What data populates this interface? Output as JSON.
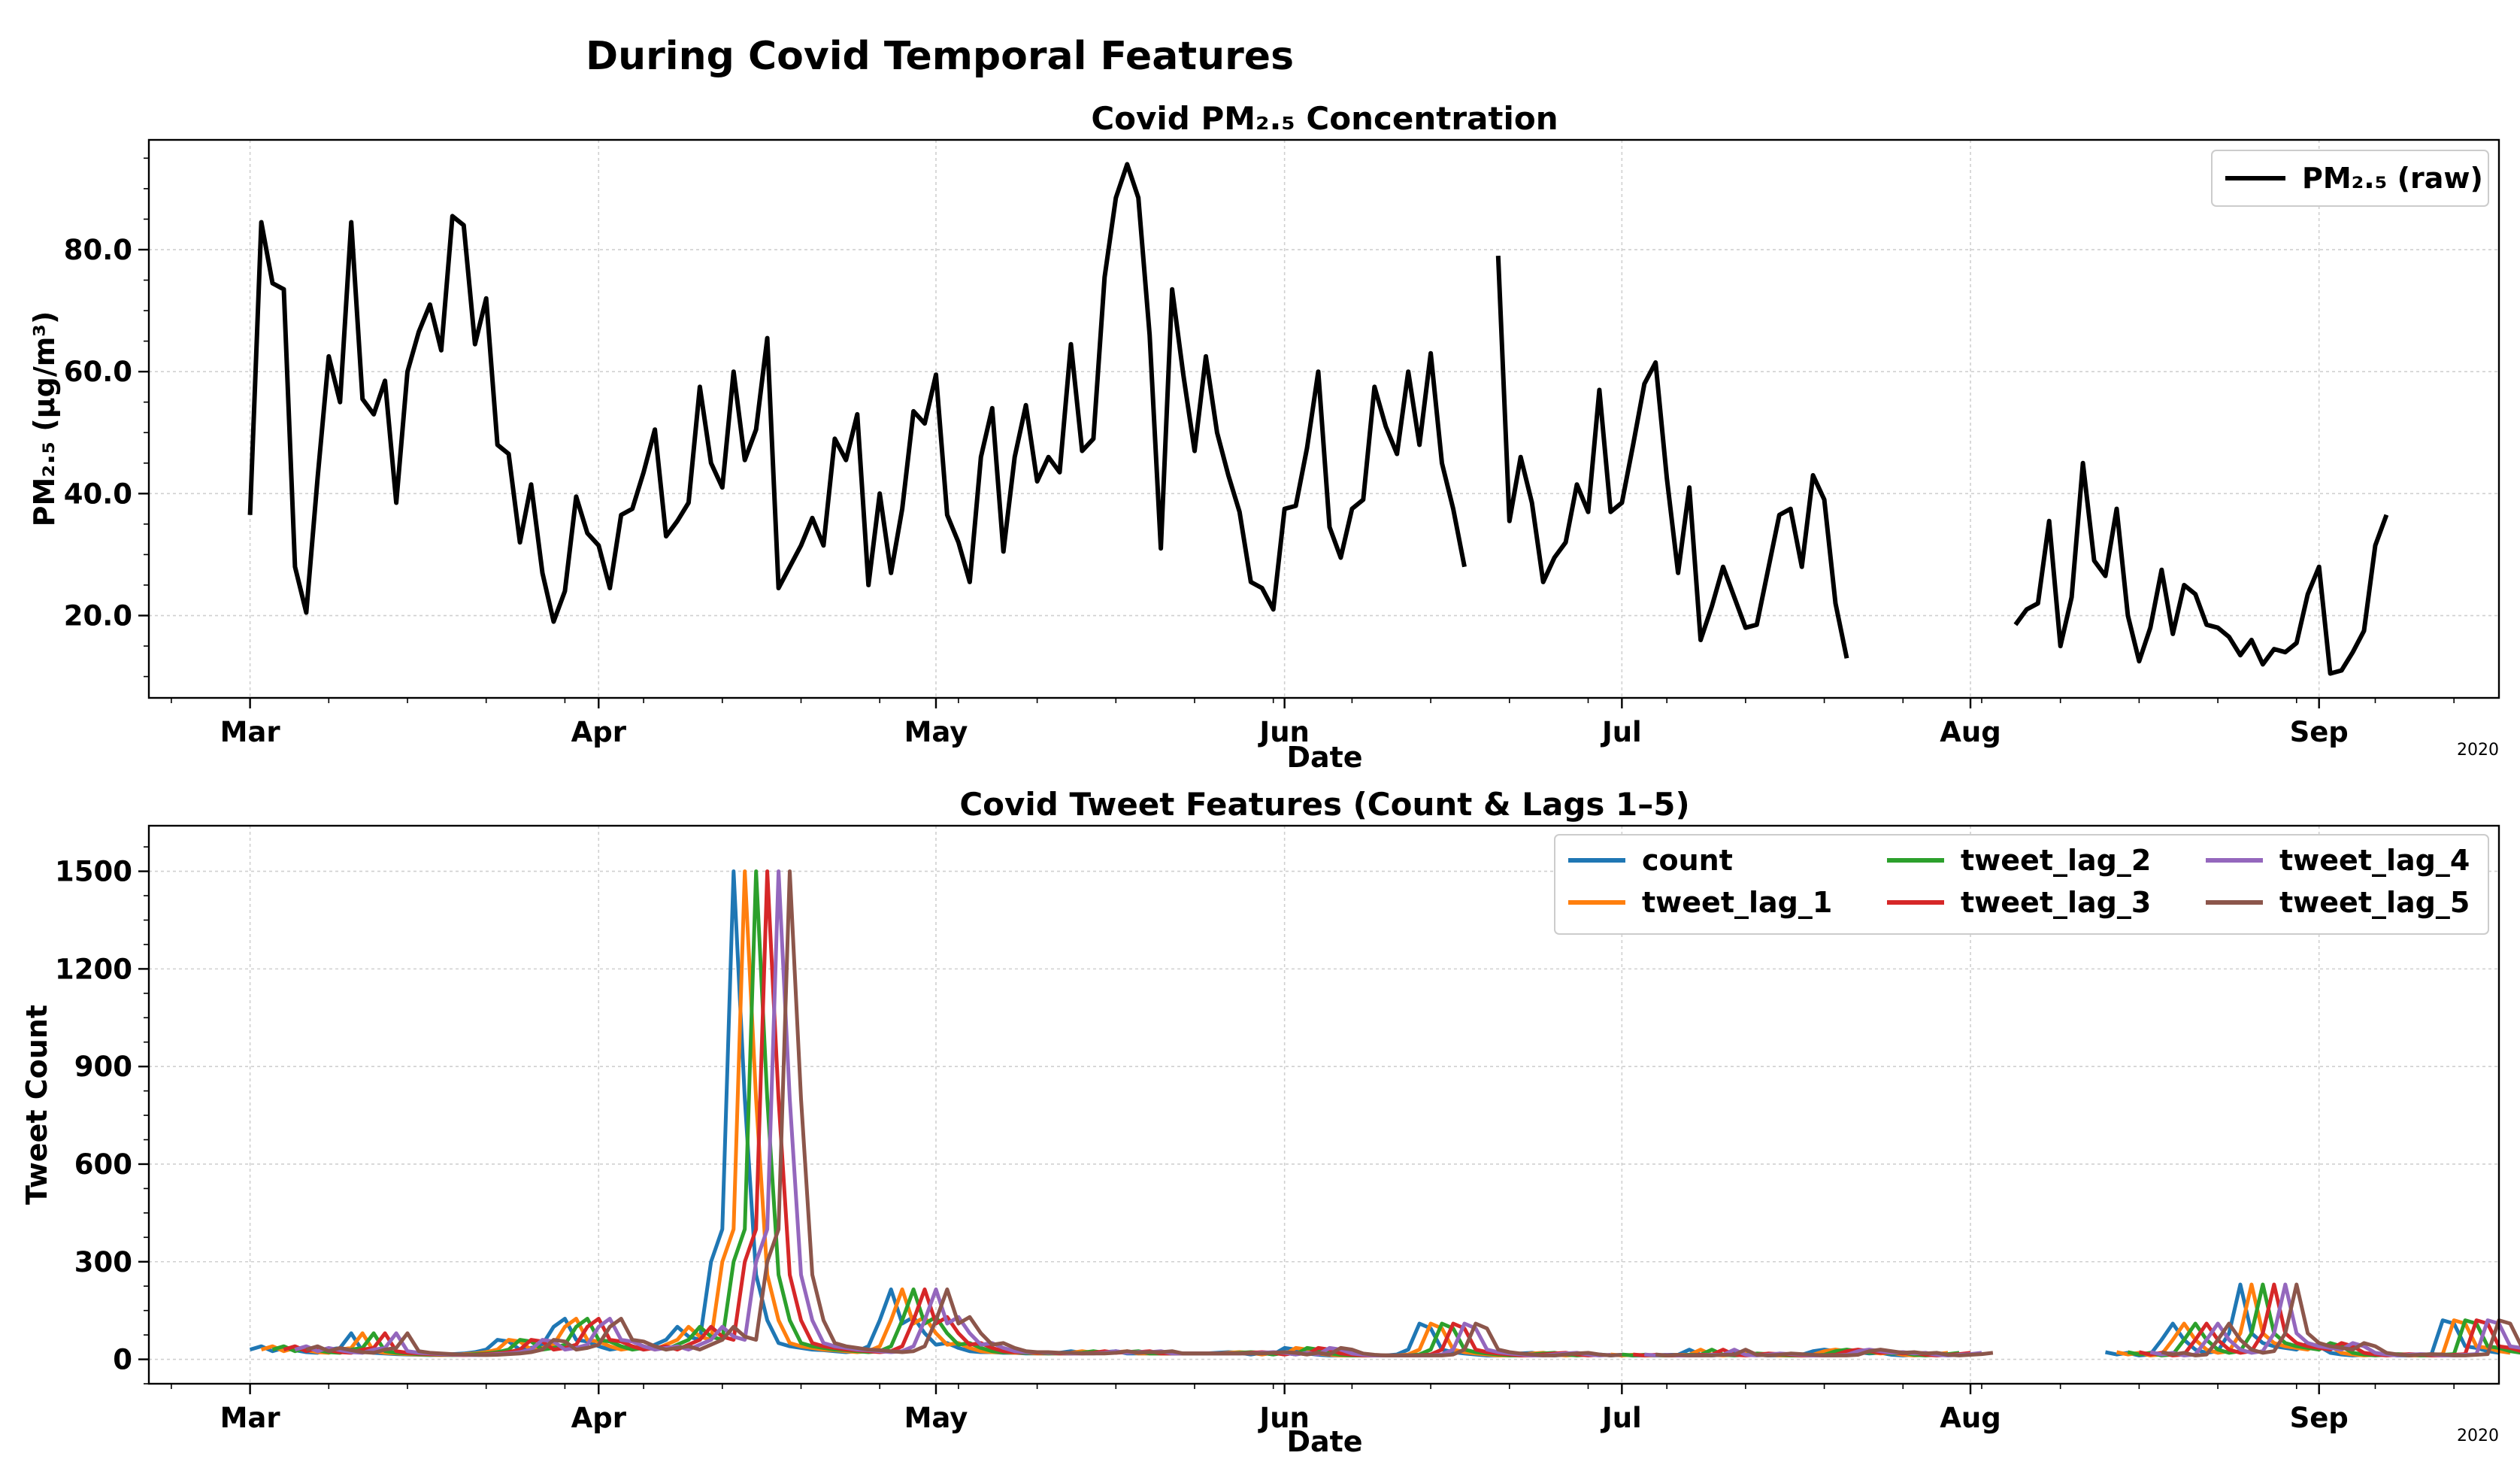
{
  "figure": {
    "title": "During Covid Temporal Features",
    "year_label": "2020"
  },
  "chart_data": [
    {
      "type": "line",
      "title": "Covid PM₂.₅ Concentration",
      "xlabel": "Date",
      "ylabel": "PM₂.₅ (μg/m³)",
      "x_tick_labels": [
        "Mar",
        "Apr",
        "May",
        "Jun",
        "Jul",
        "Aug",
        "Sep"
      ],
      "x_tick_days": [
        0,
        31,
        61,
        92,
        122,
        153,
        184
      ],
      "xlim_days": [
        -9,
        200
      ],
      "y_ticks": [
        20,
        40,
        60,
        80
      ],
      "y_tick_labels": [
        "20.0",
        "40.0",
        "60.0",
        "80.0"
      ],
      "ylim": [
        6.5,
        98
      ],
      "grid": true,
      "legend_position": "top-right",
      "series": [
        {
          "name": "PM₂.₅ (raw)",
          "color": "#000000",
          "start_day": 0,
          "values": [
            36.5,
            84.5,
            74.5,
            73.5,
            28,
            20.5,
            42.5,
            62.5,
            55,
            84.5,
            55.5,
            53,
            58.5,
            38.5,
            60,
            66.5,
            71,
            63.5,
            85.5,
            84,
            64.5,
            72,
            48,
            46.5,
            32,
            41.5,
            27,
            19,
            24,
            39.5,
            33.5,
            31.5,
            24.5,
            36.5,
            37.5,
            43.5,
            50.5,
            33,
            35.5,
            38.5,
            57.5,
            45,
            41,
            60,
            45.5,
            50.5,
            65.5,
            24.5,
            28,
            31.5,
            36,
            31.5,
            49,
            45.5,
            53,
            25,
            40,
            27,
            37.5,
            53.5,
            51.5,
            59.5,
            36.5,
            32,
            25.5,
            46,
            54,
            30.5,
            46,
            54.5,
            42,
            46,
            43.5,
            64.5,
            47,
            49,
            75.5,
            88.5,
            94,
            88.5,
            66,
            31,
            73.5,
            59.5,
            47,
            62.5,
            50,
            43,
            37,
            25.5,
            24.5,
            21,
            37.5,
            38,
            47.5,
            60,
            34.5,
            29.5,
            37.5,
            39,
            57.5,
            51,
            46.5,
            60,
            48,
            63,
            45,
            37.5,
            28,
            null,
            null,
            79,
            35.5,
            46,
            38.5,
            25.5,
            29.5,
            32,
            41.5,
            37,
            57,
            37,
            38.5,
            48,
            58,
            61.5,
            42.5,
            27,
            41,
            16,
            21.5,
            28,
            23,
            18,
            18.5,
            27.5,
            36.5,
            37.5,
            28,
            43,
            39,
            22,
            13,
            null,
            null,
            null,
            null,
            null,
            null,
            null,
            null,
            null,
            null,
            null,
            null,
            null,
            null,
            18.5,
            21,
            22,
            35.5,
            15,
            23,
            45,
            29,
            26.5,
            37.5,
            20,
            12.5,
            18,
            27.5,
            17,
            25,
            23.5,
            18.5,
            18,
            16.5,
            13.5,
            16,
            12,
            14.5,
            14,
            15.5,
            23.5,
            28,
            10.5,
            11,
            14,
            17.5,
            31.5,
            36.5
          ]
        }
      ]
    },
    {
      "type": "line",
      "title": "Covid Tweet Features (Count & Lags 1–5)",
      "xlabel": "Date",
      "ylabel": "Tweet Count",
      "x_tick_labels": [
        "Mar",
        "Apr",
        "May",
        "Jun",
        "Jul",
        "Aug",
        "Sep"
      ],
      "x_tick_days": [
        0,
        31,
        61,
        92,
        122,
        153,
        184
      ],
      "xlim_days": [
        -9,
        200
      ],
      "y_ticks": [
        0,
        300,
        600,
        900,
        1200,
        1500
      ],
      "y_tick_labels": [
        "0",
        "300",
        "600",
        "900",
        "1200",
        "1500"
      ],
      "ylim": [
        -75,
        1640
      ],
      "grid": true,
      "legend_position": "top-right",
      "legend_columns": 3,
      "base_start_day": 0,
      "base_values": [
        30,
        40,
        25,
        35,
        28,
        22,
        20,
        30,
        35,
        80,
        25,
        20,
        18,
        16,
        15,
        14,
        13,
        14,
        16,
        18,
        22,
        30,
        60,
        55,
        30,
        35,
        45,
        100,
        125,
        60,
        55,
        40,
        30,
        35,
        40,
        30,
        45,
        60,
        100,
        70,
        60,
        300,
        400,
        1500,
        800,
        260,
        120,
        50,
        40,
        35,
        30,
        28,
        25,
        22,
        25,
        40,
        120,
        215,
        110,
        130,
        80,
        45,
        50,
        35,
        25,
        22,
        22,
        20,
        20,
        18,
        18,
        18,
        20,
        25,
        20,
        22,
        22,
        25,
        18,
        18,
        18,
        18,
        18,
        18,
        18,
        18,
        20,
        22,
        20,
        15,
        20,
        15,
        35,
        30,
        18,
        14,
        12,
        12,
        12,
        12,
        12,
        12,
        15,
        30,
        110,
        95,
        30,
        22,
        18,
        15,
        12,
        12,
        15,
        18,
        20,
        15,
        12,
        14,
        null,
        null,
        15,
        12,
        14,
        12,
        12,
        12,
        14,
        14,
        30,
        14,
        12,
        14,
        18,
        16,
        14,
        12,
        12,
        12,
        14,
        25,
        30,
        25,
        20,
        22,
        18,
        20,
        14,
        12,
        14,
        16,
        20,
        null,
        null,
        null,
        null,
        null,
        null,
        null,
        null,
        null,
        null,
        null,
        null,
        null,
        null,
        22,
        15,
        20,
        12,
        15,
        60,
        110,
        60,
        30,
        20,
        25,
        80,
        230,
        80,
        50,
        40,
        35,
        30,
        50,
        40,
        20,
        15,
        12,
        14,
        16,
        15,
        12,
        12,
        14,
        16,
        120,
        110,
        40,
        35,
        25,
        20
      ],
      "series": [
        {
          "name": "count",
          "color": "#1f77b4",
          "lag": 0
        },
        {
          "name": "tweet_lag_1",
          "color": "#ff7f0e",
          "lag": 1
        },
        {
          "name": "tweet_lag_2",
          "color": "#2ca02c",
          "lag": 2
        },
        {
          "name": "tweet_lag_3",
          "color": "#d62728",
          "lag": 3
        },
        {
          "name": "tweet_lag_4",
          "color": "#9467bd",
          "lag": 4
        },
        {
          "name": "tweet_lag_5",
          "color": "#8c564b",
          "lag": 5
        }
      ]
    }
  ]
}
